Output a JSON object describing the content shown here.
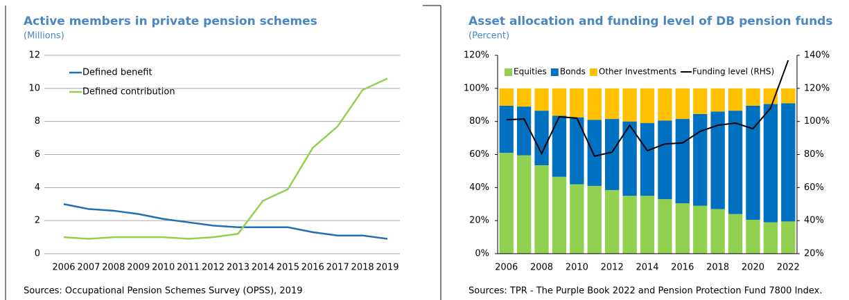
{
  "chart_data": [
    {
      "type": "line",
      "title": "Active members in private pension schemes",
      "subtitle": "(Millions)",
      "categories": [
        "2006",
        "2007",
        "2008",
        "2009",
        "2010",
        "2011",
        "2012",
        "2013",
        "2014",
        "2015",
        "2016",
        "2017",
        "2018",
        "2019"
      ],
      "series": [
        {
          "name": "Defined benefit",
          "color": "#1f6fb4",
          "values": [
            3.0,
            2.7,
            2.6,
            2.4,
            2.1,
            1.9,
            1.7,
            1.6,
            1.6,
            1.6,
            1.3,
            1.1,
            1.1,
            0.9
          ]
        },
        {
          "name": "Defined contribution",
          "color": "#92d050",
          "values": [
            1.0,
            0.9,
            1.0,
            1.0,
            1.0,
            0.9,
            1.0,
            1.2,
            3.2,
            3.9,
            6.4,
            7.7,
            9.9,
            10.6
          ]
        }
      ],
      "ylim": [
        0,
        12
      ],
      "yticks": [
        0,
        2,
        4,
        6,
        8,
        10,
        12
      ],
      "grid": true,
      "legend": "upper left",
      "source": "Sources: Occupational Pension Schemes Survey (OPSS), 2019"
    },
    {
      "type": "bar",
      "stacked": true,
      "title": "Asset allocation and funding level of DB pension funds",
      "subtitle": "(Percent)",
      "categories": [
        "2006",
        null,
        "2008",
        null,
        "2010",
        null,
        "2012",
        null,
        "2014",
        null,
        "2016",
        null,
        "2018",
        null,
        "2020",
        null,
        "2022"
      ],
      "series": [
        {
          "name": "Equities",
          "color": "#92d050",
          "values": [
            61,
            59.5,
            53.5,
            46.5,
            42,
            41,
            38.5,
            35,
            35,
            33,
            30.5,
            29,
            27,
            24,
            20.5,
            19,
            19.5
          ]
        },
        {
          "name": "Bonds",
          "color": "#0070c0",
          "values": [
            28.5,
            29.5,
            33,
            37,
            40.5,
            40,
            43,
            45,
            44,
            47.5,
            51,
            55.5,
            59,
            62.5,
            69,
            71.5,
            71.5
          ]
        },
        {
          "name": "Other Investments",
          "color": "#ffc000",
          "values": [
            10.5,
            11,
            13.5,
            16.5,
            17.5,
            19,
            18.5,
            20,
            21,
            19.5,
            18.5,
            15.5,
            14,
            13.5,
            10.5,
            9.5,
            9
          ]
        },
        {
          "name": "Funding level (RHS)",
          "color": "#000000",
          "axis": "y2",
          "values": [
            101,
            101.5,
            80.6,
            102.8,
            102,
            79,
            81.4,
            97.7,
            82.3,
            86.4,
            87,
            94,
            97.7,
            99,
            95.6,
            108,
            137
          ]
        }
      ],
      "ylim": [
        0,
        120
      ],
      "yticks": [
        {
          "value": 0,
          "label": "0%"
        },
        {
          "value": 20,
          "label": "20%"
        },
        {
          "value": 40,
          "label": "40%"
        },
        {
          "value": 60,
          "label": "60%"
        },
        {
          "value": 80,
          "label": "80%"
        },
        {
          "value": 100,
          "label": "100%"
        },
        {
          "value": 120,
          "label": "120%"
        }
      ],
      "y2lim": [
        20,
        140
      ],
      "y2ticks": [
        {
          "value": 20,
          "label": "20%"
        },
        {
          "value": 40,
          "label": "40%"
        },
        {
          "value": 60,
          "label": "60%"
        },
        {
          "value": 80,
          "label": "80%"
        },
        {
          "value": 100,
          "label": "100%"
        },
        {
          "value": 120,
          "label": "120%"
        },
        {
          "value": 140,
          "label": "140%"
        }
      ],
      "grid": false,
      "legend": "upper center",
      "source": "Sources: TPR - The Purple Book 2022 and Pension Protection Fund 7800 Index."
    }
  ]
}
